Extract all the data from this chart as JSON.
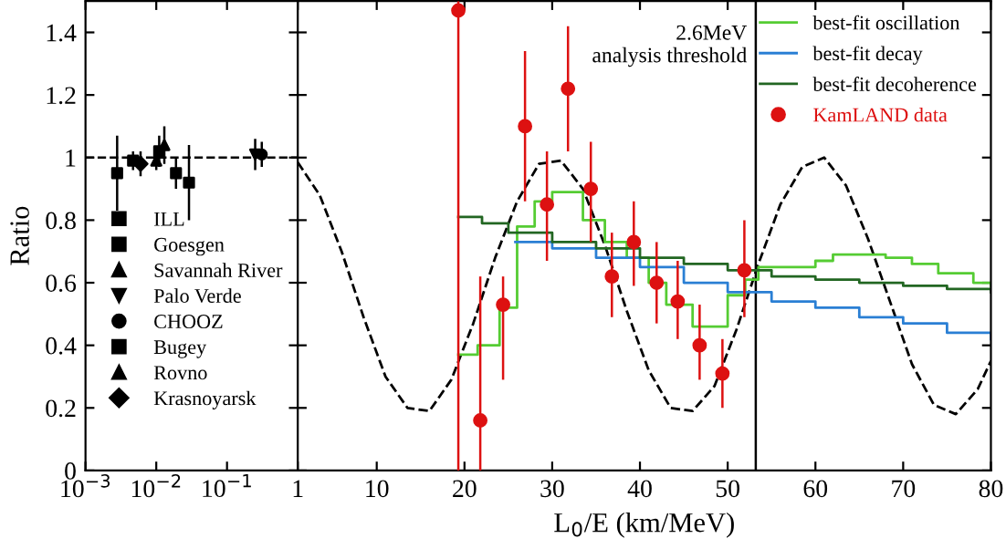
{
  "chart_data": [
    {
      "type": "scatter",
      "ylabel": "Ratio",
      "log": "x",
      "xlim": [
        0.001,
        1
      ],
      "xticks": [
        {
          "value": 0.001,
          "label": "10$^{−3}$"
        },
        {
          "value": 0.01,
          "label": "10$^{−2}$"
        },
        {
          "value": 0.1,
          "label": "10$^{−1}$"
        }
      ],
      "ylim": [
        0,
        1.5
      ],
      "yticks": [
        0,
        0.2,
        0.4,
        0.6,
        0.8,
        1,
        1.2,
        1.4
      ],
      "legend": "bottom",
      "grid": false,
      "ref_lines": [
        {
          "axis": "y",
          "value": 1,
          "line_style": "dashed",
          "color": "#000000"
        }
      ],
      "series": [
        {
          "name": "ILL",
          "color": "#000000",
          "marker": "square",
          "x": [
            0.0028
          ],
          "values": [
            0.95
          ],
          "errors": [
            0.12
          ]
        },
        {
          "name": "Goesgen",
          "color": "#000000",
          "marker": "square",
          "x": [
            0.011,
            0.019
          ],
          "values": [
            1.02,
            0.95
          ],
          "errors": [
            0.05,
            0.05
          ]
        },
        {
          "name": "Savannah River",
          "color": "#000000",
          "marker": "triangle",
          "x": [
            0.013
          ],
          "values": [
            1.04
          ],
          "errors": [
            0.06
          ]
        },
        {
          "name": "Palo Verde",
          "color": "#000000",
          "marker": "triangle_down",
          "x": [
            0.25
          ],
          "values": [
            1.01
          ],
          "errors": [
            0.05
          ]
        },
        {
          "name": "CHOOZ",
          "color": "#000000",
          "marker": "circle",
          "x": [
            0.31
          ],
          "values": [
            1.01
          ],
          "errors": [
            0.04
          ]
        },
        {
          "name": "Bugey",
          "color": "#000000",
          "marker": "square",
          "x": [
            0.0047,
            0.029
          ],
          "values": [
            0.99,
            0.92
          ],
          "errors": [
            0.03,
            0.12
          ]
        },
        {
          "name": "Rovno",
          "color": "#000000",
          "marker": "triangle",
          "x": [
            0.01
          ],
          "values": [
            0.99
          ],
          "errors": [
            0.03
          ]
        },
        {
          "name": "Krasnoyarsk",
          "color": "#000000",
          "marker": "diamond",
          "x": [
            0.006
          ],
          "values": [
            0.98
          ],
          "errors": [
            0.04
          ]
        }
      ]
    },
    {
      "type": "scatter",
      "xlabel": "L$_{0}$/E (km/MeV)",
      "xlim": [
        1,
        80
      ],
      "xticks": [
        1,
        10,
        20,
        30,
        40,
        50,
        60,
        70,
        80
      ],
      "ylim": [
        0,
        1.5
      ],
      "yticks": [
        0,
        0.2,
        0.4,
        0.6,
        0.8,
        1,
        1.2,
        1.4
      ],
      "tick_labels": "x",
      "legend": "top right",
      "grid": false,
      "ref_lines": [
        {
          "axis": "x",
          "value": 53.2,
          "label": "2.6MeV\nanalysis threshold",
          "color": "#000000",
          "line_style": "solid"
        }
      ],
      "series": [
        {
          "type": "line",
          "color": "#000000",
          "line_style": "dashed",
          "x": [
            1,
            3.5,
            6,
            8.5,
            11,
            13.5,
            16,
            18.5,
            21,
            23.5,
            26,
            28.5,
            31,
            33.5,
            36,
            38.5,
            41,
            43.5,
            46,
            48.5,
            51,
            53.5,
            56,
            58.5,
            61,
            63.5,
            66,
            68.5,
            71,
            73.5,
            76,
            78.5,
            80
          ],
          "values": [
            0.985,
            0.88,
            0.7,
            0.49,
            0.3,
            0.2,
            0.19,
            0.29,
            0.47,
            0.68,
            0.86,
            0.98,
            0.99,
            0.9,
            0.72,
            0.51,
            0.32,
            0.2,
            0.19,
            0.27,
            0.45,
            0.66,
            0.85,
            0.97,
            1.0,
            0.91,
            0.74,
            0.54,
            0.34,
            0.21,
            0.18,
            0.26,
            0.35
          ]
        },
        {
          "name": "best-fit oscillation",
          "type": "step",
          "color": "#55cc33",
          "x": [
            19.3,
            21.5,
            24,
            26,
            28,
            30,
            33.5,
            36,
            38.5,
            41,
            43,
            46,
            50,
            52,
            53.5,
            56,
            60,
            62,
            68,
            71,
            74,
            78,
            80
          ],
          "values": [
            0.37,
            0.4,
            0.52,
            0.78,
            0.86,
            0.89,
            0.8,
            0.73,
            0.68,
            0.6,
            0.53,
            0.46,
            0.56,
            0.61,
            0.65,
            0.65,
            0.67,
            0.69,
            0.68,
            0.66,
            0.63,
            0.6,
            0.59
          ]
        },
        {
          "name": "best-fit decay",
          "type": "step",
          "color": "#2a7fd4",
          "x": [
            25.8,
            30,
            35,
            40,
            45,
            50,
            55,
            60,
            65,
            70,
            75,
            80
          ],
          "values": [
            0.73,
            0.71,
            0.68,
            0.65,
            0.6,
            0.57,
            0.54,
            0.52,
            0.49,
            0.47,
            0.44,
            0.42
          ]
        },
        {
          "name": "best-fit decoherence",
          "type": "step",
          "color": "#226622",
          "x": [
            19.3,
            22,
            25,
            30,
            35,
            40,
            45,
            50,
            55,
            60,
            65,
            70,
            75,
            80
          ],
          "values": [
            0.81,
            0.79,
            0.76,
            0.73,
            0.71,
            0.68,
            0.66,
            0.64,
            0.62,
            0.61,
            0.6,
            0.59,
            0.58,
            0.57
          ]
        },
        {
          "name": "KamLAND data",
          "type": "scatter",
          "color": "#dd1111",
          "marker": "circle",
          "x": [
            19.3,
            21.8,
            24.4,
            26.9,
            29.4,
            31.8,
            34.4,
            36.8,
            39.3,
            41.9,
            44.3,
            46.8,
            49.4,
            51.9
          ],
          "values": [
            1.47,
            0.16,
            0.53,
            1.1,
            0.85,
            1.22,
            0.9,
            0.62,
            0.73,
            0.6,
            0.54,
            0.4,
            0.31,
            0.64
          ],
          "errors": [
            [
              0,
              1.5
            ],
            [
              0,
              0.62
            ],
            [
              0.29,
              0.62
            ],
            [
              0.86,
              1.34
            ],
            [
              0.67,
              1.02
            ],
            [
              1.02,
              1.42
            ],
            [
              0.73,
              1.05
            ],
            [
              0.49,
              0.76
            ],
            [
              0.59,
              0.86
            ],
            [
              0.47,
              0.73
            ],
            [
              0.42,
              0.67
            ],
            [
              0.29,
              0.53
            ],
            [
              0.2,
              0.42
            ],
            [
              0.49,
              0.8
            ]
          ]
        }
      ]
    }
  ]
}
